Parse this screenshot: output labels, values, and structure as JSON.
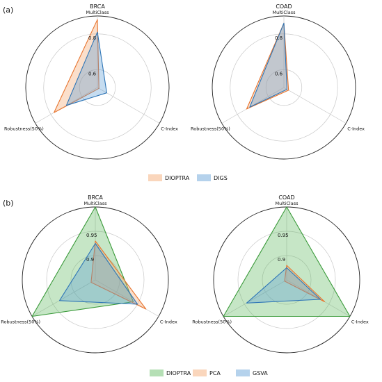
{
  "panels": [
    {
      "label": "(a)"
    },
    {
      "label": "(b)"
    }
  ],
  "legends": [
    {
      "panel": 0,
      "entries": [
        {
          "name": "DIOPTRA",
          "color": "#f4a46b"
        },
        {
          "name": "DIGS",
          "color": "#5a9bd5"
        }
      ]
    },
    {
      "panel": 1,
      "entries": [
        {
          "name": "DIOPTRA",
          "color": "#5cb85c"
        },
        {
          "name": "PCA",
          "color": "#f4a46b"
        },
        {
          "name": "GSVA",
          "color": "#5a9bd5"
        }
      ]
    }
  ],
  "chart_data": [
    {
      "type": "radar",
      "panel": 0,
      "title": "BRCA",
      "axes": [
        "MultiClass",
        "C-Index",
        "Robustness(50%)"
      ],
      "rlim": [
        0.5,
        0.9
      ],
      "ticks": [
        0.6,
        0.8
      ],
      "series": [
        {
          "name": "DIOPTRA",
          "values": [
            0.88,
            0.51,
            0.78
          ],
          "color": "#f4a46b",
          "stroke": "#e8742e"
        },
        {
          "name": "DIGS",
          "values": [
            0.81,
            0.56,
            0.7
          ],
          "color": "#5a9bd5",
          "stroke": "#2e75b6"
        }
      ]
    },
    {
      "type": "radar",
      "panel": 0,
      "title": "COAD",
      "axes": [
        "MultiClass",
        "C-Index",
        "Robustness(50%)"
      ],
      "rlim": [
        0.5,
        0.9
      ],
      "ticks": [
        0.6,
        0.8
      ],
      "series": [
        {
          "name": "DIOPTRA",
          "values": [
            0.86,
            0.53,
            0.74
          ],
          "color": "#f4a46b",
          "stroke": "#e8742e"
        },
        {
          "name": "DIGS",
          "values": [
            0.86,
            0.52,
            0.72
          ],
          "color": "#5a9bd5",
          "stroke": "#2e75b6"
        }
      ]
    },
    {
      "type": "radar",
      "panel": 1,
      "title": "BRCA",
      "axes": [
        "MultiClass",
        "C-Index",
        "Robustness(50%)"
      ],
      "rlim": [
        0.85,
        1.0
      ],
      "ticks": [
        0.9,
        0.95
      ],
      "series": [
        {
          "name": "DIOPTRA",
          "values": [
            1.0,
            0.94,
            1.0
          ],
          "color": "#5cb85c",
          "stroke": "#3a9a3a"
        },
        {
          "name": "PCA",
          "values": [
            0.93,
            0.97,
            0.86
          ],
          "color": "#f4a46b",
          "stroke": "#e8742e"
        },
        {
          "name": "GSVA",
          "values": [
            0.925,
            0.95,
            0.935
          ],
          "color": "#5a9bd5",
          "stroke": "#2e75b6"
        }
      ]
    },
    {
      "type": "radar",
      "panel": 1,
      "title": "COAD",
      "axes": [
        "MultiClass",
        "C-Index",
        "Robustness(50%)"
      ],
      "rlim": [
        0.85,
        1.0
      ],
      "ticks": [
        0.9,
        0.95
      ],
      "series": [
        {
          "name": "DIOPTRA",
          "values": [
            1.0,
            1.0,
            1.0
          ],
          "color": "#5cb85c",
          "stroke": "#3a9a3a"
        },
        {
          "name": "PCA",
          "values": [
            0.88,
            0.94,
            0.855
          ],
          "color": "#f4a46b",
          "stroke": "#e8742e"
        },
        {
          "name": "GSVA",
          "values": [
            0.875,
            0.93,
            0.945
          ],
          "color": "#5a9bd5",
          "stroke": "#2e75b6"
        }
      ]
    }
  ]
}
